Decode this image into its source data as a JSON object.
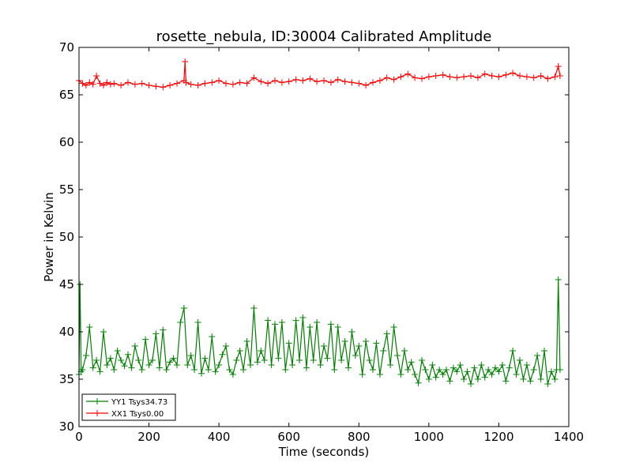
{
  "chart_data": {
    "type": "line",
    "title": "rosette_nebula, ID:30004 Calibrated Amplitude",
    "xlabel": "Time (seconds)",
    "ylabel": "Power in Kelvin",
    "xlim": [
      0,
      1400
    ],
    "ylim": [
      30,
      70
    ],
    "xticks": [
      0,
      200,
      400,
      600,
      800,
      1000,
      1200,
      1400
    ],
    "yticks": [
      30,
      35,
      40,
      45,
      50,
      55,
      60,
      65,
      70
    ],
    "grid": false,
    "legend_position": "lower-left",
    "marker": "+",
    "series": [
      {
        "name": "YY1 Tsys34.73",
        "color": "#008000",
        "x": [
          0,
          3,
          6,
          10,
          20,
          30,
          40,
          50,
          60,
          70,
          80,
          90,
          100,
          110,
          120,
          130,
          140,
          150,
          160,
          170,
          180,
          190,
          200,
          210,
          220,
          230,
          240,
          250,
          260,
          270,
          280,
          290,
          300,
          310,
          320,
          330,
          340,
          350,
          360,
          370,
          380,
          390,
          400,
          410,
          420,
          430,
          440,
          450,
          460,
          470,
          480,
          490,
          500,
          510,
          520,
          530,
          540,
          550,
          560,
          570,
          580,
          590,
          600,
          610,
          620,
          630,
          640,
          650,
          660,
          670,
          680,
          690,
          700,
          710,
          720,
          730,
          740,
          750,
          760,
          770,
          780,
          790,
          800,
          810,
          820,
          830,
          840,
          850,
          860,
          870,
          880,
          890,
          900,
          910,
          920,
          930,
          940,
          950,
          960,
          970,
          980,
          990,
          1000,
          1010,
          1020,
          1030,
          1040,
          1050,
          1060,
          1070,
          1080,
          1090,
          1100,
          1110,
          1120,
          1130,
          1140,
          1150,
          1160,
          1170,
          1180,
          1190,
          1200,
          1210,
          1220,
          1230,
          1240,
          1250,
          1260,
          1270,
          1280,
          1290,
          1300,
          1310,
          1320,
          1330,
          1340,
          1350,
          1360,
          1365,
          1370,
          1375
        ],
        "y": [
          35.5,
          45.0,
          35.8,
          36.0,
          37.5,
          40.5,
          36.2,
          37.0,
          35.8,
          40.0,
          36.5,
          37.2,
          36.0,
          38.0,
          37.0,
          36.4,
          37.6,
          36.2,
          38.5,
          37.0,
          36.0,
          39.2,
          36.5,
          37.0,
          39.8,
          36.2,
          40.2,
          36.0,
          36.8,
          37.2,
          36.5,
          41.0,
          42.5,
          36.5,
          37.5,
          36.0,
          41.0,
          35.6,
          37.2,
          36.0,
          39.5,
          35.8,
          36.5,
          37.6,
          38.5,
          36.0,
          35.5,
          37.0,
          38.0,
          36.0,
          39.0,
          36.5,
          42.5,
          36.8,
          38.0,
          37.0,
          41.2,
          36.5,
          40.8,
          37.2,
          41.0,
          36.0,
          38.8,
          36.5,
          41.2,
          37.0,
          41.5,
          36.2,
          40.5,
          37.0,
          41.0,
          36.5,
          38.5,
          37.2,
          40.8,
          36.0,
          40.5,
          37.0,
          39.0,
          36.2,
          40.0,
          37.5,
          38.5,
          35.5,
          39.0,
          37.0,
          36.0,
          38.8,
          35.5,
          38.0,
          39.8,
          36.5,
          40.5,
          37.5,
          35.5,
          38.0,
          36.0,
          36.8,
          35.5,
          34.6,
          37.0,
          36.0,
          35.0,
          36.5,
          35.2,
          36.0,
          35.5,
          36.0,
          34.8,
          36.2,
          35.8,
          36.5,
          35.0,
          35.8,
          34.5,
          36.2,
          35.0,
          36.5,
          35.2,
          36.0,
          35.5,
          36.2,
          35.8,
          36.5,
          34.8,
          36.2,
          38.0,
          35.5,
          37.0,
          35.0,
          36.5,
          34.8,
          36.0,
          37.5,
          35.0,
          38.0,
          34.5,
          35.8,
          35.0,
          36.0,
          45.5,
          36.0
        ]
      },
      {
        "name": "XX1 Tsys0.00",
        "color": "#ff0000",
        "x": [
          0,
          10,
          20,
          30,
          40,
          50,
          60,
          70,
          80,
          90,
          100,
          120,
          140,
          160,
          180,
          200,
          220,
          240,
          260,
          280,
          300,
          303,
          306,
          320,
          340,
          360,
          380,
          400,
          420,
          440,
          460,
          480,
          500,
          520,
          540,
          560,
          580,
          600,
          620,
          640,
          660,
          680,
          700,
          720,
          740,
          760,
          780,
          800,
          820,
          840,
          860,
          880,
          900,
          920,
          940,
          960,
          980,
          1000,
          1020,
          1040,
          1060,
          1080,
          1100,
          1120,
          1140,
          1160,
          1180,
          1200,
          1220,
          1240,
          1260,
          1280,
          1300,
          1320,
          1340,
          1360,
          1370,
          1375
        ],
        "y": [
          66.5,
          66.2,
          66.0,
          66.3,
          66.1,
          67.0,
          66.2,
          66.0,
          66.3,
          66.1,
          66.2,
          66.0,
          66.3,
          66.1,
          66.2,
          66.0,
          65.9,
          65.8,
          66.0,
          66.2,
          66.5,
          68.5,
          66.3,
          66.1,
          66.0,
          66.2,
          66.3,
          66.5,
          66.2,
          66.1,
          66.3,
          66.2,
          66.8,
          66.4,
          66.2,
          66.5,
          66.3,
          66.4,
          66.6,
          66.5,
          66.7,
          66.4,
          66.5,
          66.3,
          66.6,
          66.4,
          66.3,
          66.2,
          66.0,
          66.3,
          66.5,
          66.8,
          66.6,
          66.9,
          67.2,
          66.8,
          66.7,
          66.9,
          67.0,
          67.1,
          66.9,
          66.8,
          66.9,
          67.0,
          66.8,
          67.2,
          67.0,
          66.9,
          67.1,
          67.3,
          67.0,
          66.9,
          66.8,
          67.0,
          66.7,
          66.9,
          68.0,
          67.0
        ]
      }
    ]
  }
}
